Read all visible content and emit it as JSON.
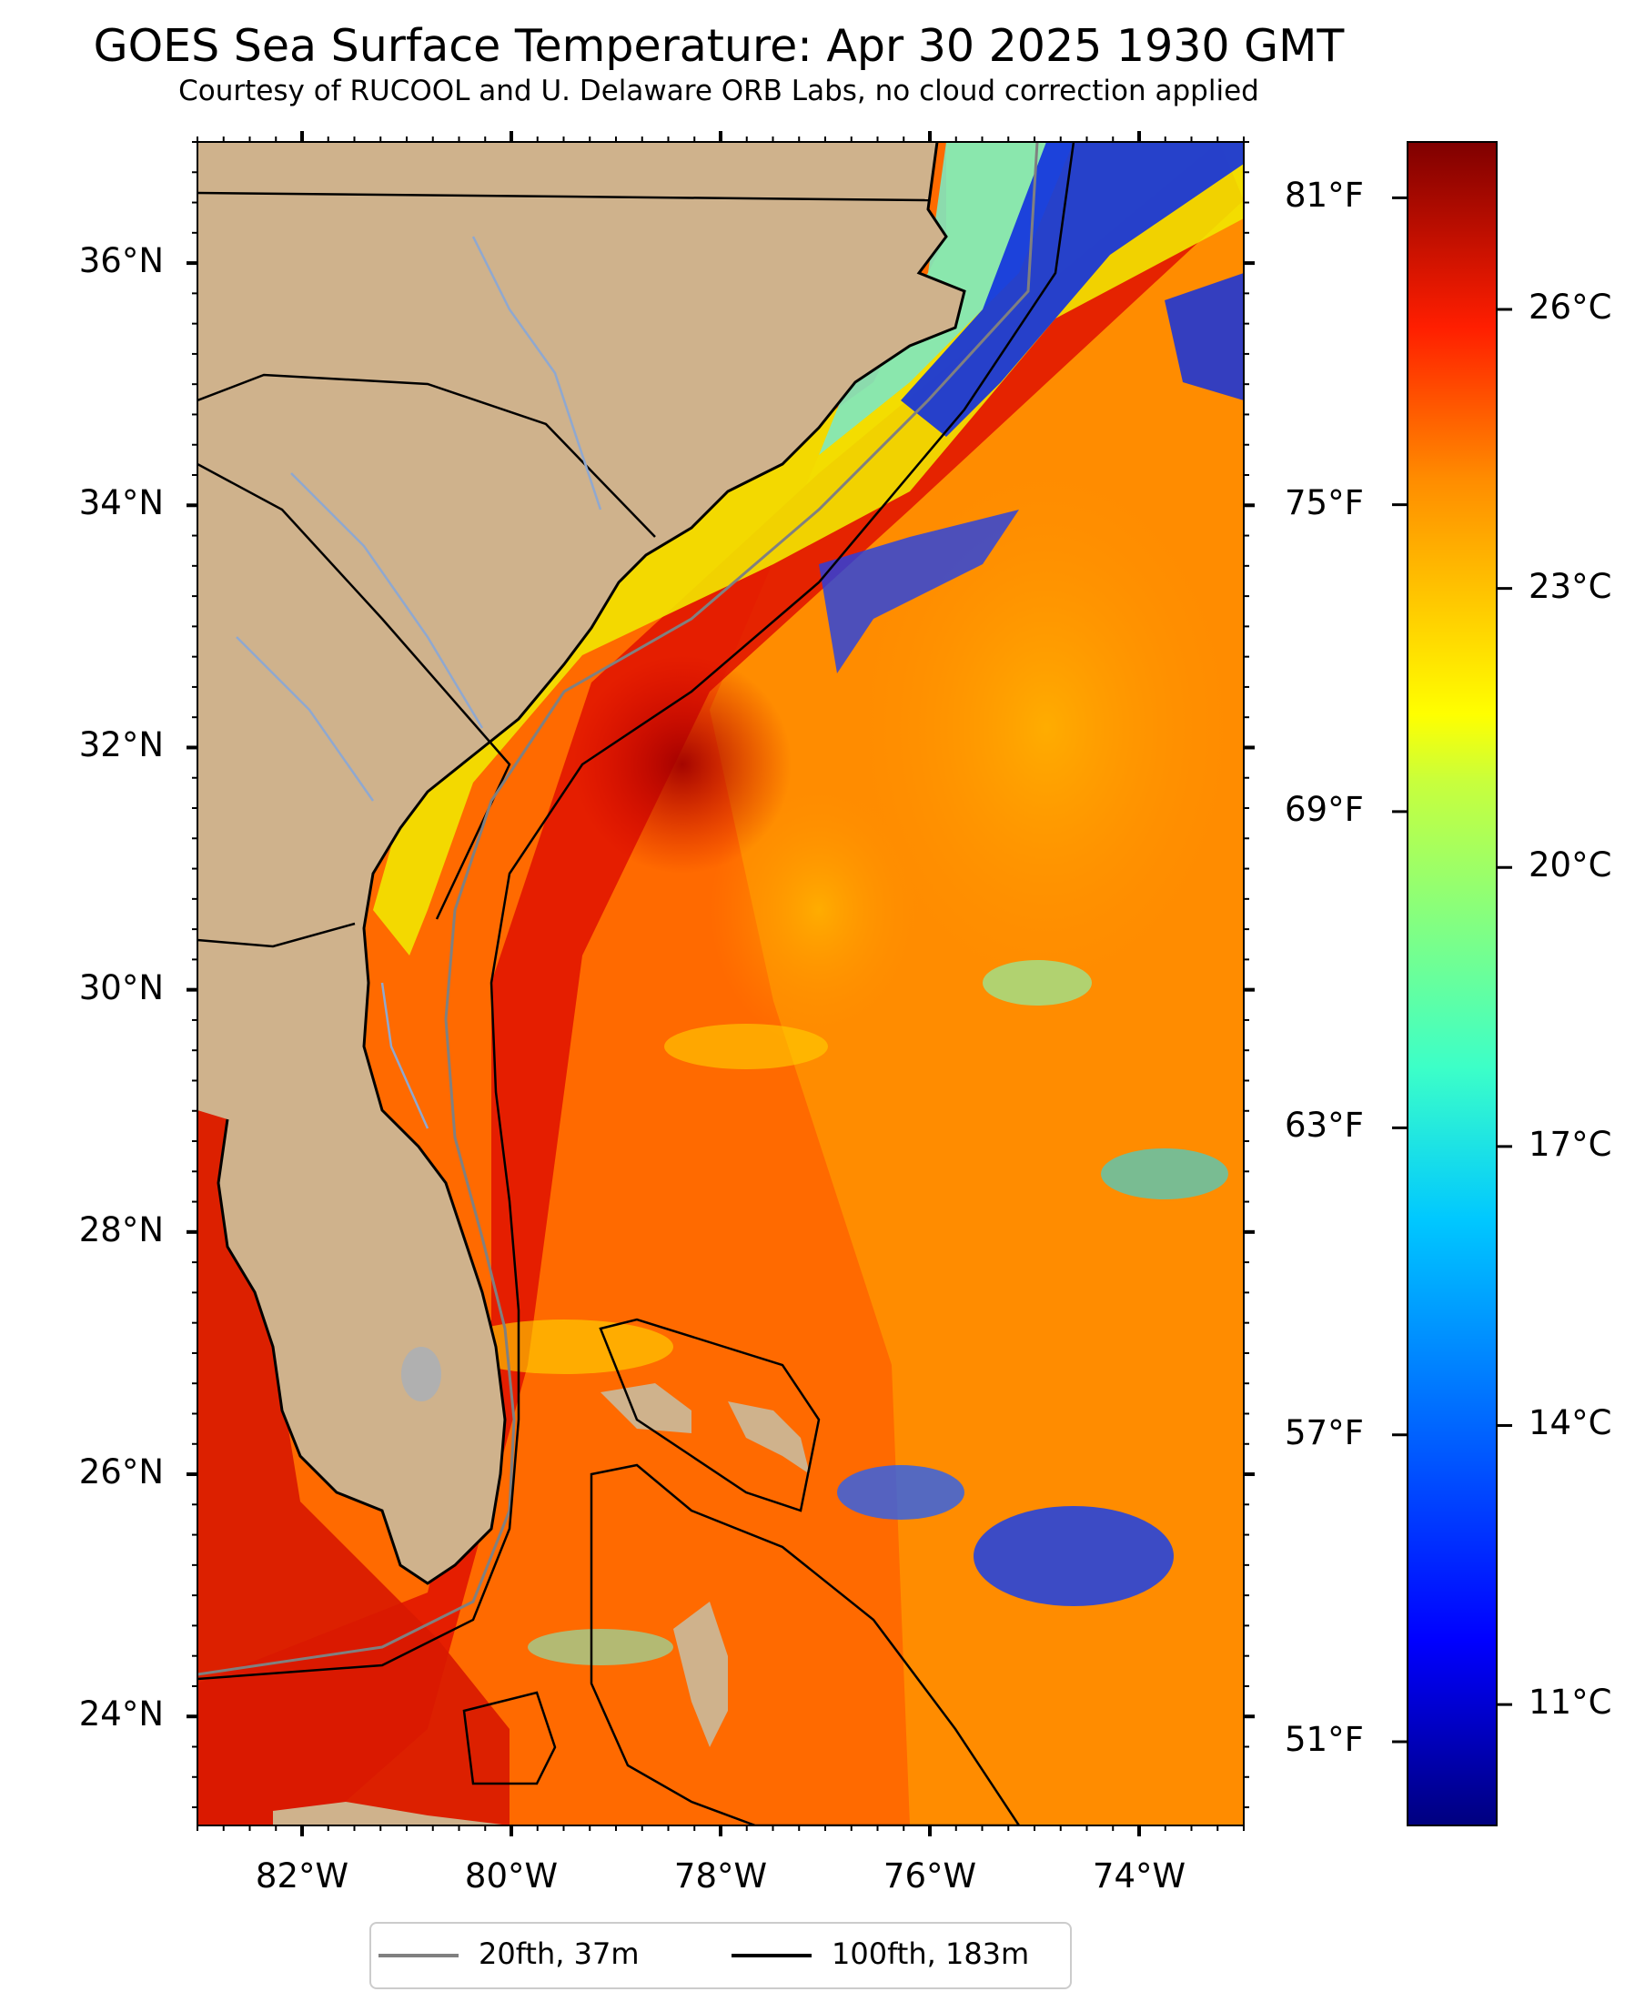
{
  "title": "GOES Sea Surface Temperature: Apr 30 2025 1930 GMT",
  "subtitle": "Courtesy of RUCOOL and U. Delaware ORB Labs, no cloud correction applied",
  "map": {
    "lon_range": [
      -83,
      -73
    ],
    "lat_range": [
      23.1,
      37.0
    ],
    "lat_labels": [
      {
        "lat": 36,
        "text": "36°N"
      },
      {
        "lat": 34,
        "text": "34°N"
      },
      {
        "lat": 32,
        "text": "32°N"
      },
      {
        "lat": 30,
        "text": "30°N"
      },
      {
        "lat": 28,
        "text": "28°N"
      },
      {
        "lat": 26,
        "text": "26°N"
      },
      {
        "lat": 24,
        "text": "24°N"
      }
    ],
    "lon_labels": [
      {
        "lon": -82,
        "text": "82°W"
      },
      {
        "lon": -80,
        "text": "80°W"
      },
      {
        "lon": -78,
        "text": "78°W"
      },
      {
        "lon": -76,
        "text": "76°W"
      },
      {
        "lon": -74,
        "text": "74°W"
      }
    ],
    "land_color": "#cfb28c",
    "ocean_warm": "#ff5a00",
    "ocean_hot": "#cc0000",
    "ocean_mid": "#ffaa00"
  },
  "colorbar": {
    "range_c": [
      9.7,
      27.8
    ],
    "fahrenheit_labels": [
      {
        "value_c": 27.2,
        "text": "81°F"
      },
      {
        "value_c": 23.9,
        "text": "75°F"
      },
      {
        "value_c": 20.6,
        "text": "69°F"
      },
      {
        "value_c": 17.2,
        "text": "63°F"
      },
      {
        "value_c": 13.9,
        "text": "57°F"
      },
      {
        "value_c": 10.6,
        "text": "51°F"
      }
    ],
    "celsius_labels": [
      {
        "value_c": 26,
        "text": "26°C"
      },
      {
        "value_c": 23,
        "text": "23°C"
      },
      {
        "value_c": 20,
        "text": "20°C"
      },
      {
        "value_c": 17,
        "text": "17°C"
      },
      {
        "value_c": 14,
        "text": "14°C"
      },
      {
        "value_c": 11,
        "text": "11°C"
      }
    ]
  },
  "legend": {
    "items": [
      {
        "label": "20fth, 37m",
        "color": "#808080"
      },
      {
        "label": "100fth, 183m",
        "color": "#000000"
      }
    ]
  }
}
